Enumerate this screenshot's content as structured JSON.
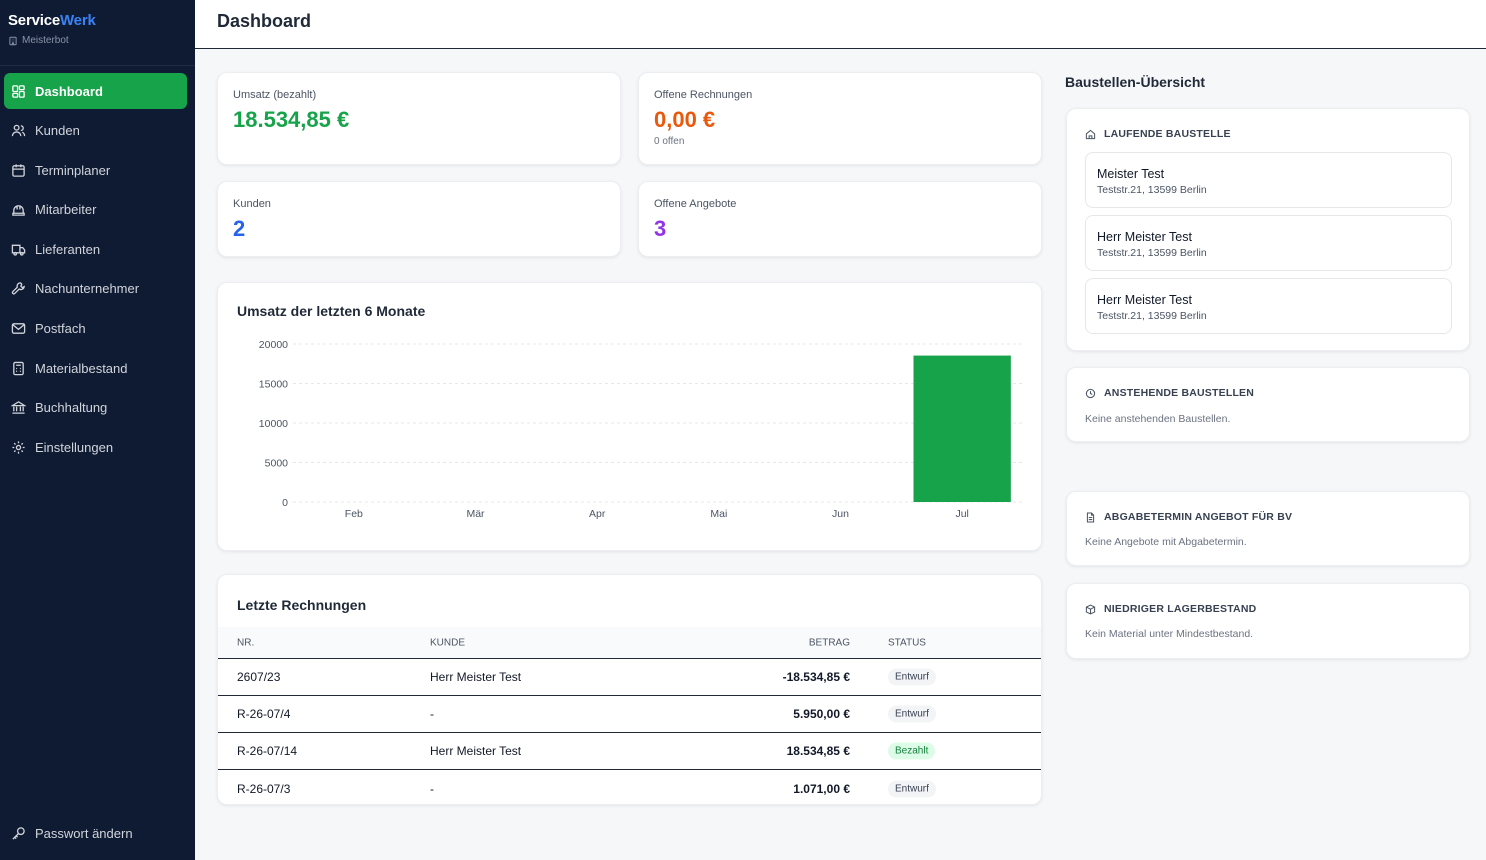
{
  "brand": {
    "name_part1": "Service",
    "name_part2": "Werk",
    "subtitle": "Meisterbot",
    "accent": "#3b82f6"
  },
  "sidebar": {
    "items": [
      {
        "label": "Dashboard",
        "icon": "dashboard-icon",
        "active": true
      },
      {
        "label": "Kunden",
        "icon": "users-icon"
      },
      {
        "label": "Terminplaner",
        "icon": "calendar-icon"
      },
      {
        "label": "Mitarbeiter",
        "icon": "hardhat-icon"
      },
      {
        "label": "Lieferanten",
        "icon": "truck-icon"
      },
      {
        "label": "Nachunternehmer",
        "icon": "wrench-icon"
      },
      {
        "label": "Postfach",
        "icon": "mail-icon"
      },
      {
        "label": "Materialbestand",
        "icon": "calculator-icon"
      },
      {
        "label": "Buchhaltung",
        "icon": "bank-icon"
      },
      {
        "label": "Einstellungen",
        "icon": "gear-icon"
      }
    ],
    "bottom": {
      "label": "Passwort ändern",
      "icon": "key-icon"
    },
    "active_color": "#16a34a"
  },
  "header": {
    "title": "Dashboard"
  },
  "stats": {
    "revenue": {
      "label": "Umsatz (bezahlt)",
      "value": "18.534,85 €",
      "color": "#16a34a"
    },
    "open_invoices": {
      "label": "Offene Rechnungen",
      "value": "0,00 €",
      "sub": "0 offen",
      "color": "#ea580c"
    },
    "customers": {
      "label": "Kunden",
      "value": "2",
      "color": "#2563eb"
    },
    "open_offers": {
      "label": "Offene Angebote",
      "value": "3",
      "color": "#9333ea"
    }
  },
  "chart_data": {
    "type": "bar",
    "title": "Umsatz der letzten 6 Monate",
    "categories": [
      "Feb",
      "Mär",
      "Apr",
      "Mai",
      "Jun",
      "Jul"
    ],
    "values": [
      0,
      0,
      0,
      0,
      0,
      18534.85
    ],
    "yticks": [
      "20000",
      "15000",
      "10000",
      "5000",
      "0"
    ],
    "ylim": [
      0,
      20000
    ],
    "grid": true,
    "bar_color": "#16a34a"
  },
  "invoices": {
    "title": "Letzte Rechnungen",
    "columns": {
      "nr": "NR.",
      "kunde": "KUNDE",
      "betrag": "BETRAG",
      "status": "STATUS"
    },
    "rows": [
      {
        "nr": "2607/23",
        "kunde": "Herr Meister Test",
        "betrag": "-18.534,85 €",
        "status": "Entwurf"
      },
      {
        "nr": "R-26-07/4",
        "kunde": "-",
        "betrag": "5.950,00 €",
        "status": "Entwurf"
      },
      {
        "nr": "R-26-07/14",
        "kunde": "Herr Meister Test",
        "betrag": "18.534,85 €",
        "status": "Bezahlt"
      },
      {
        "nr": "R-26-07/3",
        "kunde": "-",
        "betrag": "1.071,00 €",
        "status": "Entwurf"
      }
    ]
  },
  "sites": {
    "title": "Baustellen-Übersicht",
    "running": {
      "heading": "LAUFENDE BAUSTELLE",
      "items": [
        {
          "name": "Meister Test",
          "address": "Teststr.21, 13599 Berlin"
        },
        {
          "name": "Herr Meister Test",
          "address": "Teststr.21, 13599 Berlin"
        },
        {
          "name": "Herr Meister Test",
          "address": "Teststr.21, 13599 Berlin"
        }
      ]
    },
    "upcoming": {
      "heading": "ANSTEHENDE BAUSTELLEN",
      "empty": "Keine anstehenden Baustellen."
    },
    "offer_deadline": {
      "heading": "ABGABETERMIN ANGEBOT FÜR BV",
      "empty": "Keine Angebote mit Abgabetermin."
    },
    "low_stock": {
      "heading": "NIEDRIGER LAGERBESTAND",
      "empty": "Kein Material unter Mindestbestand."
    }
  }
}
